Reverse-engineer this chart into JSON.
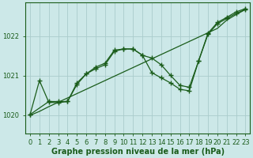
{
  "background_color": "#cce8e8",
  "grid_color": "#aacccc",
  "line_color": "#1a5c1a",
  "xlabel": "Graphe pression niveau de la mer (hPa)",
  "xlabel_color": "#1a5c1a",
  "ylabel_ticks": [
    1020,
    1021,
    1022
  ],
  "xlim": [
    -0.5,
    23.5
  ],
  "ylim": [
    1019.55,
    1022.85
  ],
  "line1_x": [
    0,
    1,
    2,
    3,
    4,
    5,
    6,
    7,
    8,
    9,
    10,
    11,
    12,
    13,
    14,
    15,
    16,
    17,
    18,
    19,
    20,
    21,
    22,
    23
  ],
  "line1_y": [
    1020.0,
    1020.1,
    1020.22,
    1020.33,
    1020.44,
    1020.55,
    1020.66,
    1020.77,
    1020.88,
    1020.99,
    1021.1,
    1021.21,
    1021.32,
    1021.43,
    1021.54,
    1021.65,
    1021.76,
    1021.87,
    1021.98,
    1022.09,
    1022.2,
    1022.41,
    1022.55,
    1022.68
  ],
  "line2_x": [
    0,
    1,
    2,
    3,
    4,
    5,
    6,
    7,
    8,
    9,
    10,
    11,
    12,
    13,
    14,
    15,
    16,
    17,
    18,
    19,
    20,
    21,
    22,
    23
  ],
  "line2_y": [
    1020.02,
    1020.88,
    1020.33,
    1020.32,
    1020.35,
    1020.82,
    1021.05,
    1021.18,
    1021.28,
    1021.62,
    1021.68,
    1021.68,
    1021.52,
    1021.45,
    1021.28,
    1021.01,
    1020.76,
    1020.71,
    1021.38,
    1022.05,
    1022.32,
    1022.45,
    1022.58,
    1022.68
  ],
  "line3_x": [
    0,
    2,
    3,
    4,
    5,
    6,
    7,
    8,
    9,
    10,
    11,
    12,
    13,
    14,
    15,
    16,
    17,
    18,
    19,
    20,
    21,
    22,
    23
  ],
  "line3_y": [
    1020.02,
    1020.35,
    1020.35,
    1020.35,
    1020.78,
    1021.05,
    1021.22,
    1021.32,
    1021.65,
    1021.68,
    1021.68,
    1021.52,
    1021.08,
    1020.95,
    1020.82,
    1020.66,
    1020.62,
    1021.38,
    1022.08,
    1022.35,
    1022.48,
    1022.62,
    1022.7
  ],
  "xtick_labels": [
    "0",
    "1",
    "2",
    "3",
    "4",
    "5",
    "6",
    "7",
    "8",
    "9",
    "10",
    "11",
    "12",
    "13",
    "14",
    "15",
    "16",
    "17",
    "18",
    "19",
    "20",
    "21",
    "22",
    "23"
  ],
  "title_fontsize": 7.0,
  "tick_fontsize": 6.0
}
